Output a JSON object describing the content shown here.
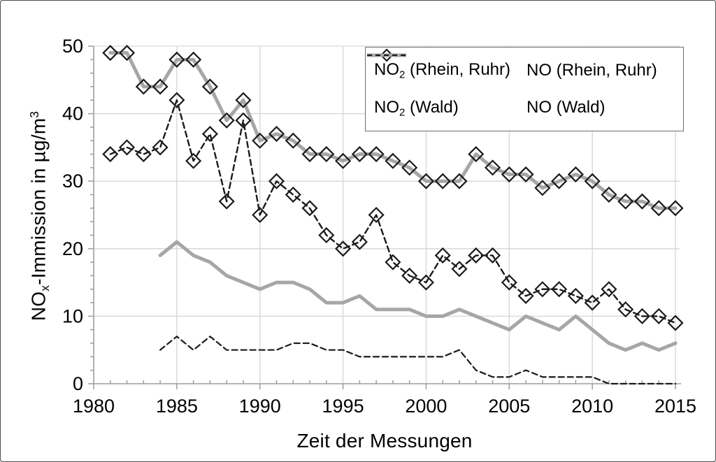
{
  "window": {
    "background": "#ffffff",
    "border_color": "#4d4d4d"
  },
  "chart_data": {
    "type": "line",
    "title": "",
    "xlabel": "Zeit der Messungen",
    "ylabel_parts": [
      {
        "t": "NO"
      },
      {
        "t": "x",
        "style": "sub"
      },
      {
        "t": "-Immission in µg/m"
      },
      {
        "t": "3",
        "style": "sup"
      }
    ],
    "xlim": [
      1980,
      2015
    ],
    "ylim": [
      0,
      50
    ],
    "x_ticks": [
      1980,
      1985,
      1990,
      1995,
      2000,
      2005,
      2010,
      2015
    ],
    "y_ticks": [
      0,
      10,
      20,
      30,
      40,
      50
    ],
    "x_minor_step": 1,
    "y_minor_step": 2,
    "grid": {
      "show_major_x": true,
      "show_major_y": true,
      "color": "#d6d6d6"
    },
    "axis_color": "#9d9d9d",
    "text_color": "#000000",
    "legend": {
      "position": "top-right",
      "border_color": "#6e6e6e",
      "background": "#ffffff"
    },
    "series": [
      {
        "id": "no2-rhein-ruhr",
        "label_parts": [
          {
            "t": "NO"
          },
          {
            "t": "2",
            "style": "sub"
          },
          {
            "t": " (Rhein, Ruhr)"
          }
        ],
        "color": "#a6a6a6",
        "line": "solid",
        "line_width": 5,
        "marker": "diamond",
        "marker_color": "#1a1a1a",
        "start_year": 1981,
        "values": [
          49,
          49,
          44,
          44,
          48,
          48,
          44,
          39,
          42,
          36,
          37,
          36,
          34,
          34,
          33,
          34,
          34,
          33,
          32,
          30,
          30,
          30,
          34,
          32,
          31,
          31,
          29,
          30,
          31,
          30,
          28,
          27,
          27,
          26,
          26
        ]
      },
      {
        "id": "no-rhein-ruhr",
        "label_parts": [
          {
            "t": "NO (Rhein, Ruhr)"
          }
        ],
        "color": "#1a1a1a",
        "line": "dashed",
        "line_width": 2.4,
        "marker": "diamond",
        "marker_color": "#1a1a1a",
        "start_year": 1981,
        "values": [
          34,
          35,
          34,
          35,
          42,
          33,
          37,
          27,
          39,
          25,
          30,
          28,
          26,
          22,
          20,
          21,
          25,
          18,
          16,
          15,
          19,
          17,
          19,
          19,
          15,
          13,
          14,
          14,
          13,
          12,
          14,
          11,
          10,
          10,
          9
        ]
      },
      {
        "id": "no2-wald",
        "label_parts": [
          {
            "t": "NO"
          },
          {
            "t": "2",
            "style": "sub"
          },
          {
            "t": " (Wald)"
          }
        ],
        "color": "#a6a6a6",
        "line": "solid",
        "line_width": 5,
        "marker": "none",
        "start_year": 1984,
        "values": [
          19,
          21,
          19,
          18,
          16,
          15,
          14,
          15,
          15,
          14,
          12,
          12,
          13,
          11,
          11,
          11,
          10,
          10,
          11,
          10,
          9,
          8,
          10,
          9,
          8,
          10,
          8,
          6,
          5,
          6,
          5,
          6
        ]
      },
      {
        "id": "no-wald",
        "label_parts": [
          {
            "t": "NO (Wald)"
          }
        ],
        "color": "#1a1a1a",
        "line": "dashed",
        "line_width": 2.2,
        "marker": "none",
        "start_year": 1984,
        "values": [
          5,
          7,
          5,
          7,
          5,
          5,
          5,
          5,
          6,
          6,
          5,
          5,
          4,
          4,
          4,
          4,
          4,
          4,
          5,
          2,
          1,
          1,
          2,
          1,
          1,
          1,
          1,
          0,
          0,
          0,
          0,
          0
        ]
      }
    ]
  }
}
